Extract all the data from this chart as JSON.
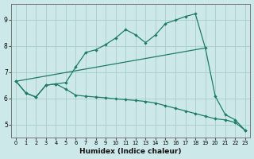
{
  "xlabel": "Humidex (Indice chaleur)",
  "background_color": "#cce8e8",
  "grid_color_major": "#aacccc",
  "grid_color_minor": "#bbdddd",
  "line_color": "#1e7b6a",
  "xlim": [
    -0.5,
    23.5
  ],
  "ylim": [
    4.5,
    9.6
  ],
  "xticks": [
    0,
    1,
    2,
    3,
    4,
    5,
    6,
    7,
    8,
    9,
    10,
    11,
    12,
    13,
    14,
    15,
    16,
    17,
    18,
    19,
    20,
    21,
    22,
    23
  ],
  "yticks": [
    5,
    6,
    7,
    8,
    9
  ],
  "upper_line": [
    [
      0,
      6.65
    ],
    [
      1,
      6.2
    ],
    [
      2,
      6.05
    ],
    [
      3,
      6.5
    ],
    [
      4,
      6.55
    ],
    [
      5,
      6.6
    ],
    [
      6,
      7.2
    ],
    [
      7,
      7.75
    ],
    [
      8,
      7.85
    ],
    [
      9,
      8.05
    ],
    [
      10,
      8.3
    ],
    [
      11,
      8.62
    ],
    [
      12,
      8.42
    ],
    [
      13,
      8.12
    ],
    [
      14,
      8.42
    ],
    [
      15,
      8.85
    ],
    [
      16,
      8.98
    ],
    [
      17,
      9.12
    ],
    [
      18,
      9.22
    ],
    [
      19,
      7.92
    ],
    [
      20,
      6.08
    ],
    [
      21,
      5.38
    ],
    [
      22,
      5.18
    ],
    [
      23,
      4.78
    ]
  ],
  "lower_line": [
    [
      0,
      6.65
    ],
    [
      1,
      6.2
    ],
    [
      2,
      6.05
    ],
    [
      3,
      6.5
    ],
    [
      4,
      6.55
    ],
    [
      5,
      6.35
    ],
    [
      6,
      6.12
    ],
    [
      7,
      6.08
    ],
    [
      8,
      6.05
    ],
    [
      9,
      6.02
    ],
    [
      10,
      5.98
    ],
    [
      11,
      5.95
    ],
    [
      12,
      5.92
    ],
    [
      13,
      5.88
    ],
    [
      14,
      5.82
    ],
    [
      15,
      5.72
    ],
    [
      16,
      5.62
    ],
    [
      17,
      5.52
    ],
    [
      18,
      5.42
    ],
    [
      19,
      5.32
    ],
    [
      20,
      5.22
    ],
    [
      21,
      5.18
    ],
    [
      22,
      5.08
    ],
    [
      23,
      4.78
    ]
  ],
  "mid_line": [
    [
      0,
      6.65
    ],
    [
      19,
      7.92
    ]
  ]
}
